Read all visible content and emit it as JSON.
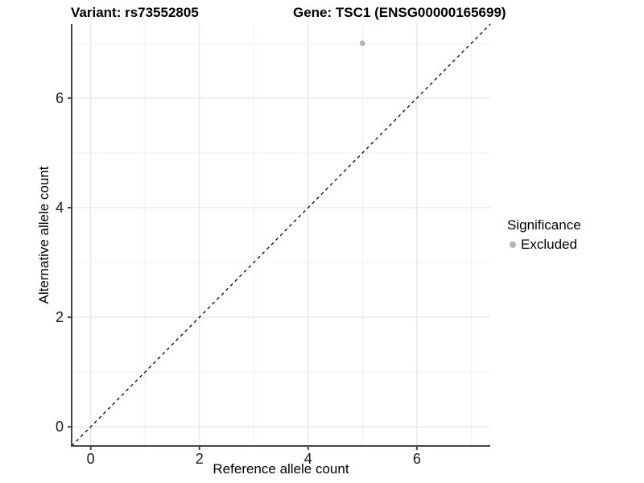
{
  "figure": {
    "background": "#ffffff"
  },
  "chart_data": {
    "type": "scatter",
    "title_left": "Variant: rs73552805",
    "title_right": "Gene: TSC1 (ENSG00000165699)",
    "xlabel": "Reference allele count",
    "ylabel": "Alternative allele count",
    "xlim": [
      -0.35,
      7.35
    ],
    "ylim": [
      -0.35,
      7.35
    ],
    "x_ticks": [
      0,
      2,
      4,
      6
    ],
    "y_ticks": [
      0,
      2,
      4,
      6
    ],
    "x_minor_gridlines": [
      1,
      3,
      5,
      7
    ],
    "y_minor_gridlines": [
      1,
      3,
      5,
      7
    ],
    "grid": "major+minor",
    "series": [
      {
        "name": "Excluded",
        "marker": "circle",
        "color": "#b5b5b5",
        "points": [
          {
            "x": 5,
            "y": 7
          }
        ]
      }
    ],
    "reference_line": {
      "kind": "identity y=x",
      "slope": 1,
      "intercept": 0,
      "linestyle": "dashed",
      "color": "#000000"
    },
    "legend": {
      "title": "Significance",
      "position": "right",
      "items": [
        {
          "label": "Excluded",
          "color": "#b5b5b5",
          "marker": "circle"
        }
      ]
    }
  },
  "theme": {
    "axis_line_color": "#454545",
    "grid_major_color": "#e6e6e6",
    "grid_minor_color": "#f0f0f0",
    "tick_label_color": "#1a1a1a",
    "point_color": "#b5b5b5",
    "dashed_line_color": "#000000"
  }
}
